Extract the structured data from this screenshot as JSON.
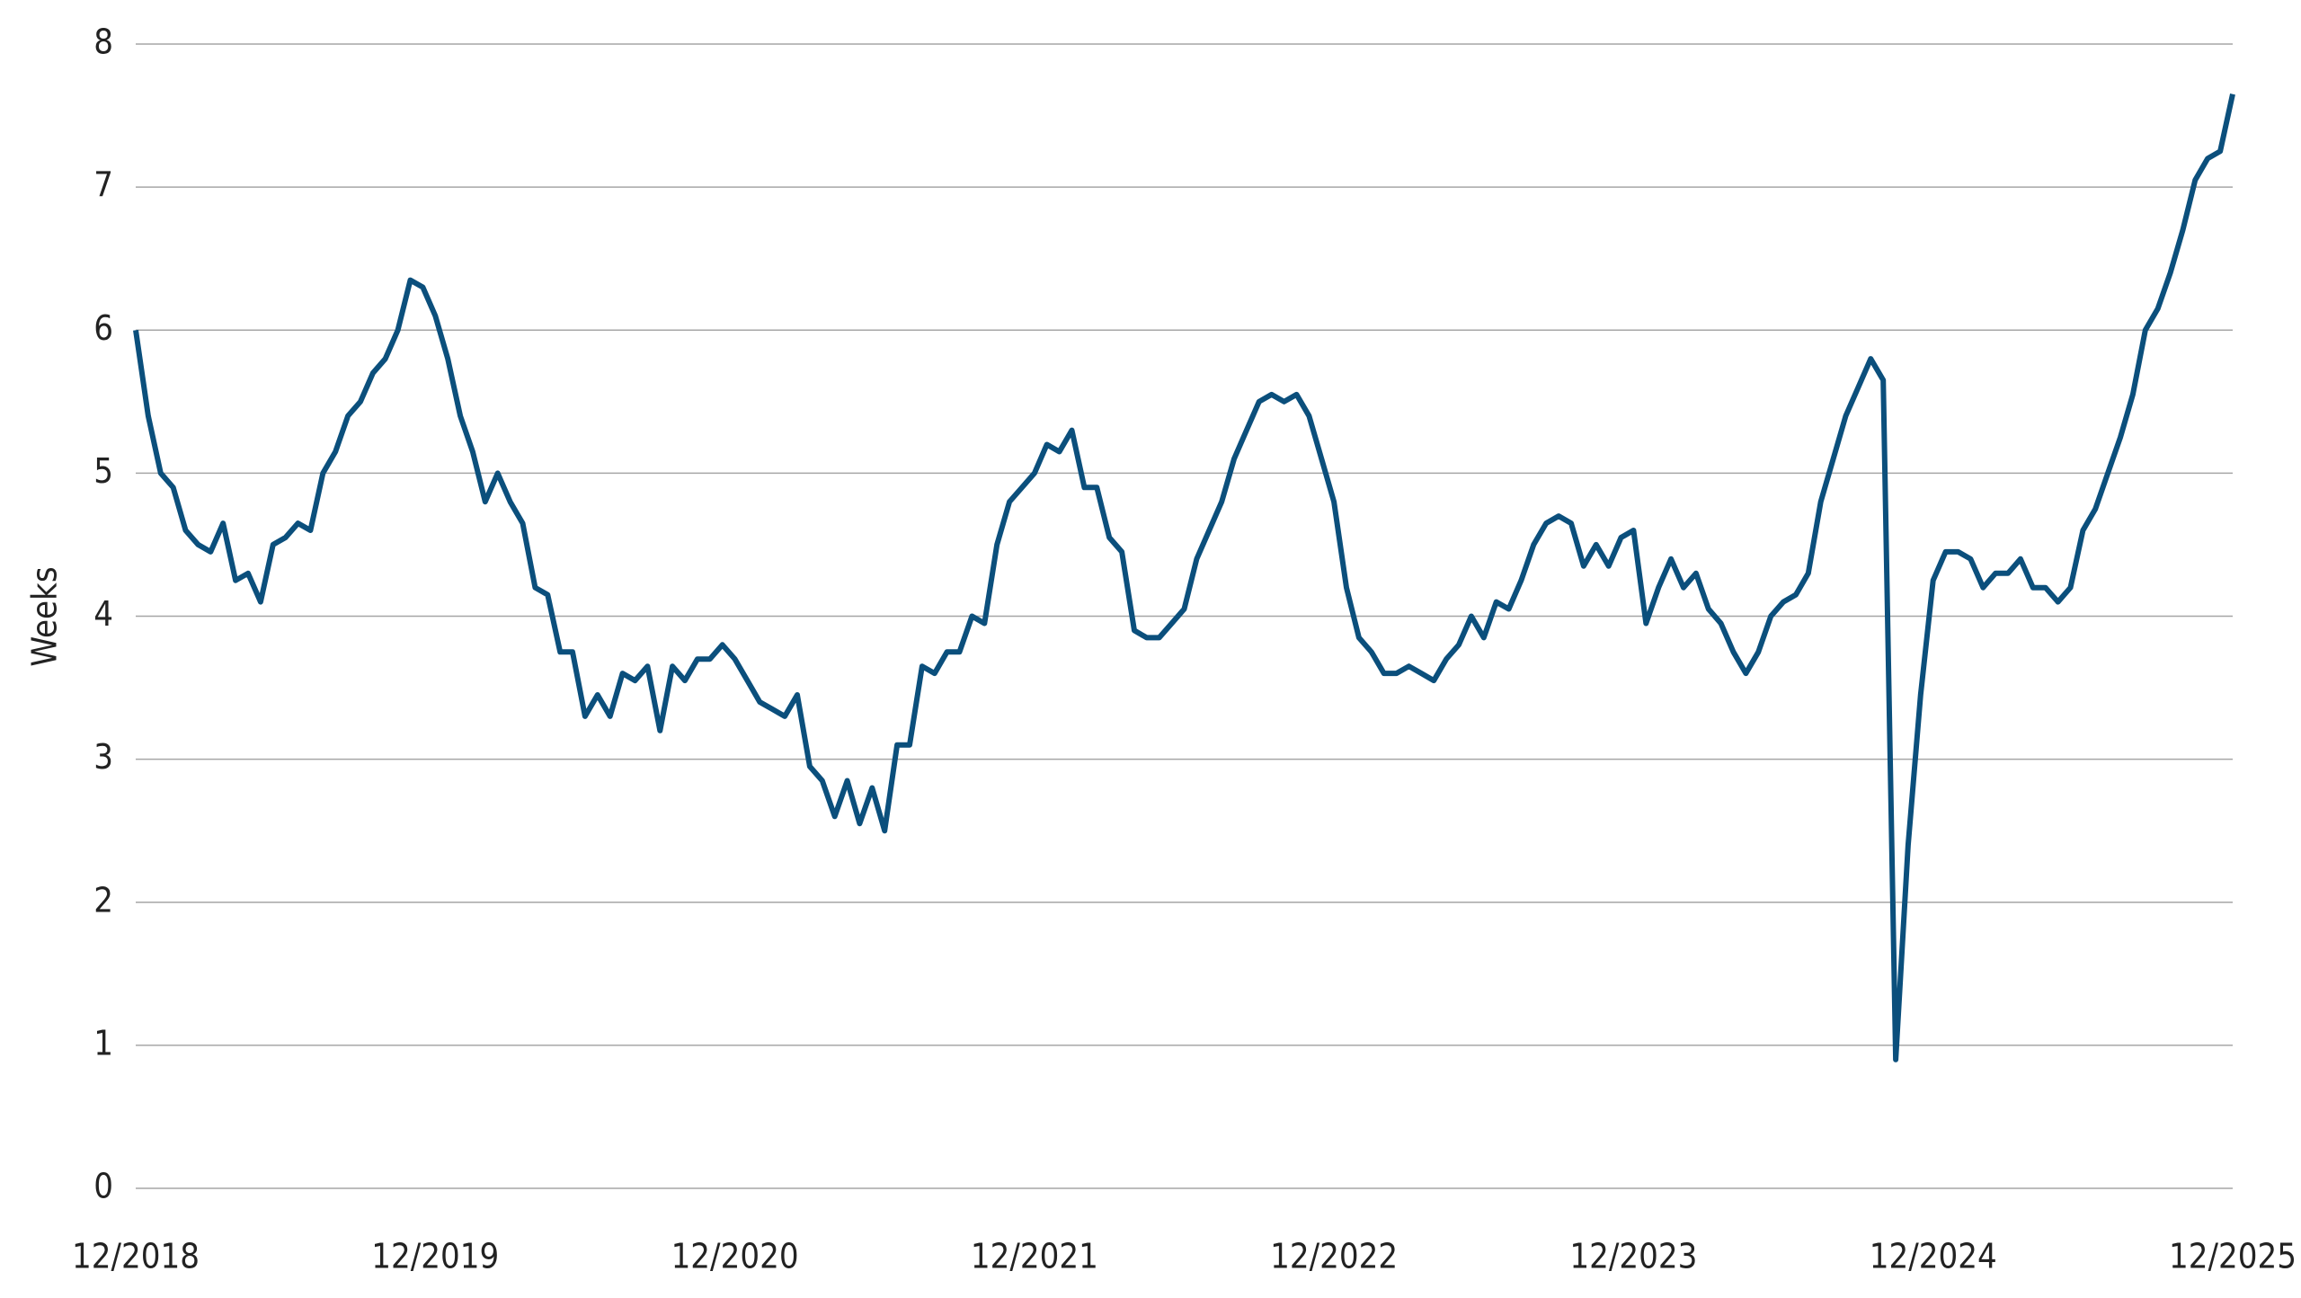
{
  "chart_data": {
    "type": "line",
    "y_label": "Weeks",
    "categories": [
      "12/2018",
      null,
      null,
      null,
      null,
      null,
      null,
      null,
      null,
      null,
      null,
      null,
      null,
      null,
      null,
      null,
      null,
      null,
      null,
      null,
      null,
      null,
      null,
      null,
      "12/2019",
      null,
      null,
      null,
      null,
      null,
      null,
      null,
      null,
      null,
      null,
      null,
      null,
      null,
      null,
      null,
      null,
      null,
      null,
      null,
      null,
      null,
      null,
      null,
      "12/2020",
      null,
      null,
      null,
      null,
      null,
      null,
      null,
      null,
      null,
      null,
      null,
      null,
      null,
      null,
      null,
      null,
      null,
      null,
      null,
      null,
      null,
      null,
      null,
      "12/2021",
      null,
      null,
      null,
      null,
      null,
      null,
      null,
      null,
      null,
      null,
      null,
      null,
      null,
      null,
      null,
      null,
      null,
      null,
      null,
      null,
      null,
      null,
      null,
      "12/2022",
      null,
      null,
      null,
      null,
      null,
      null,
      null,
      null,
      null,
      null,
      null,
      null,
      null,
      null,
      null,
      null,
      null,
      null,
      null,
      null,
      null,
      null,
      null,
      "12/2023",
      null,
      null,
      null,
      null,
      null,
      null,
      null,
      null,
      null,
      null,
      null,
      null,
      null,
      null,
      null,
      null,
      null,
      null,
      null,
      null,
      null,
      null,
      null,
      "12/2024",
      null,
      null,
      null,
      null,
      null,
      null,
      null,
      null,
      null,
      null,
      null,
      null,
      null,
      null,
      null,
      null,
      null,
      null,
      null,
      null,
      null,
      null,
      null,
      "12/2025"
    ],
    "series": [
      {
        "color": "#0b4f7c",
        "values": [
          6.0,
          5.4,
          5.0,
          4.9,
          4.6,
          4.5,
          4.45,
          4.65,
          4.25,
          4.3,
          4.1,
          4.5,
          4.55,
          4.65,
          4.6,
          5.0,
          5.15,
          5.4,
          5.5,
          5.7,
          5.8,
          6.0,
          6.35,
          6.3,
          6.1,
          5.8,
          5.4,
          5.15,
          4.8,
          5.0,
          4.8,
          4.65,
          4.2,
          4.15,
          3.75,
          3.75,
          3.3,
          3.45,
          3.3,
          3.6,
          3.55,
          3.65,
          3.2,
          3.65,
          3.55,
          3.7,
          3.7,
          3.8,
          3.7,
          3.55,
          3.4,
          3.35,
          3.3,
          3.45,
          2.95,
          2.85,
          2.6,
          2.85,
          2.55,
          2.8,
          2.5,
          3.1,
          3.1,
          3.65,
          3.6,
          3.75,
          3.75,
          4.0,
          3.95,
          4.5,
          4.8,
          4.9,
          5.0,
          5.2,
          5.15,
          5.3,
          4.9,
          4.9,
          4.55,
          4.45,
          3.9,
          3.85,
          3.85,
          3.95,
          4.05,
          4.4,
          4.6,
          4.8,
          5.1,
          5.3,
          5.5,
          5.55,
          5.5,
          5.55,
          5.4,
          5.1,
          4.8,
          4.2,
          3.85,
          3.75,
          3.6,
          3.6,
          3.65,
          3.6,
          3.55,
          3.7,
          3.8,
          4.0,
          3.85,
          4.1,
          4.05,
          4.25,
          4.5,
          4.65,
          4.7,
          4.65,
          4.35,
          4.5,
          4.35,
          4.55,
          4.6,
          3.95,
          4.2,
          4.4,
          4.2,
          4.3,
          4.05,
          3.95,
          3.75,
          3.6,
          3.75,
          4.0,
          4.1,
          4.15,
          4.3,
          4.8,
          5.1,
          5.4,
          5.6,
          5.8,
          5.65,
          0.9,
          2.4,
          3.45,
          4.25,
          4.45,
          4.45,
          4.4,
          4.2,
          4.3,
          4.3,
          4.4,
          4.2,
          4.2,
          4.1,
          4.2,
          4.6,
          4.75,
          5.0,
          5.25,
          5.55,
          6.0,
          6.15,
          6.4,
          6.7,
          7.05,
          7.2,
          7.25,
          7.65
        ]
      }
    ],
    "ylim": [
      0,
      8
    ],
    "yticks": [
      0,
      1,
      2,
      3,
      4,
      5,
      6,
      7,
      8
    ],
    "grid": true
  }
}
